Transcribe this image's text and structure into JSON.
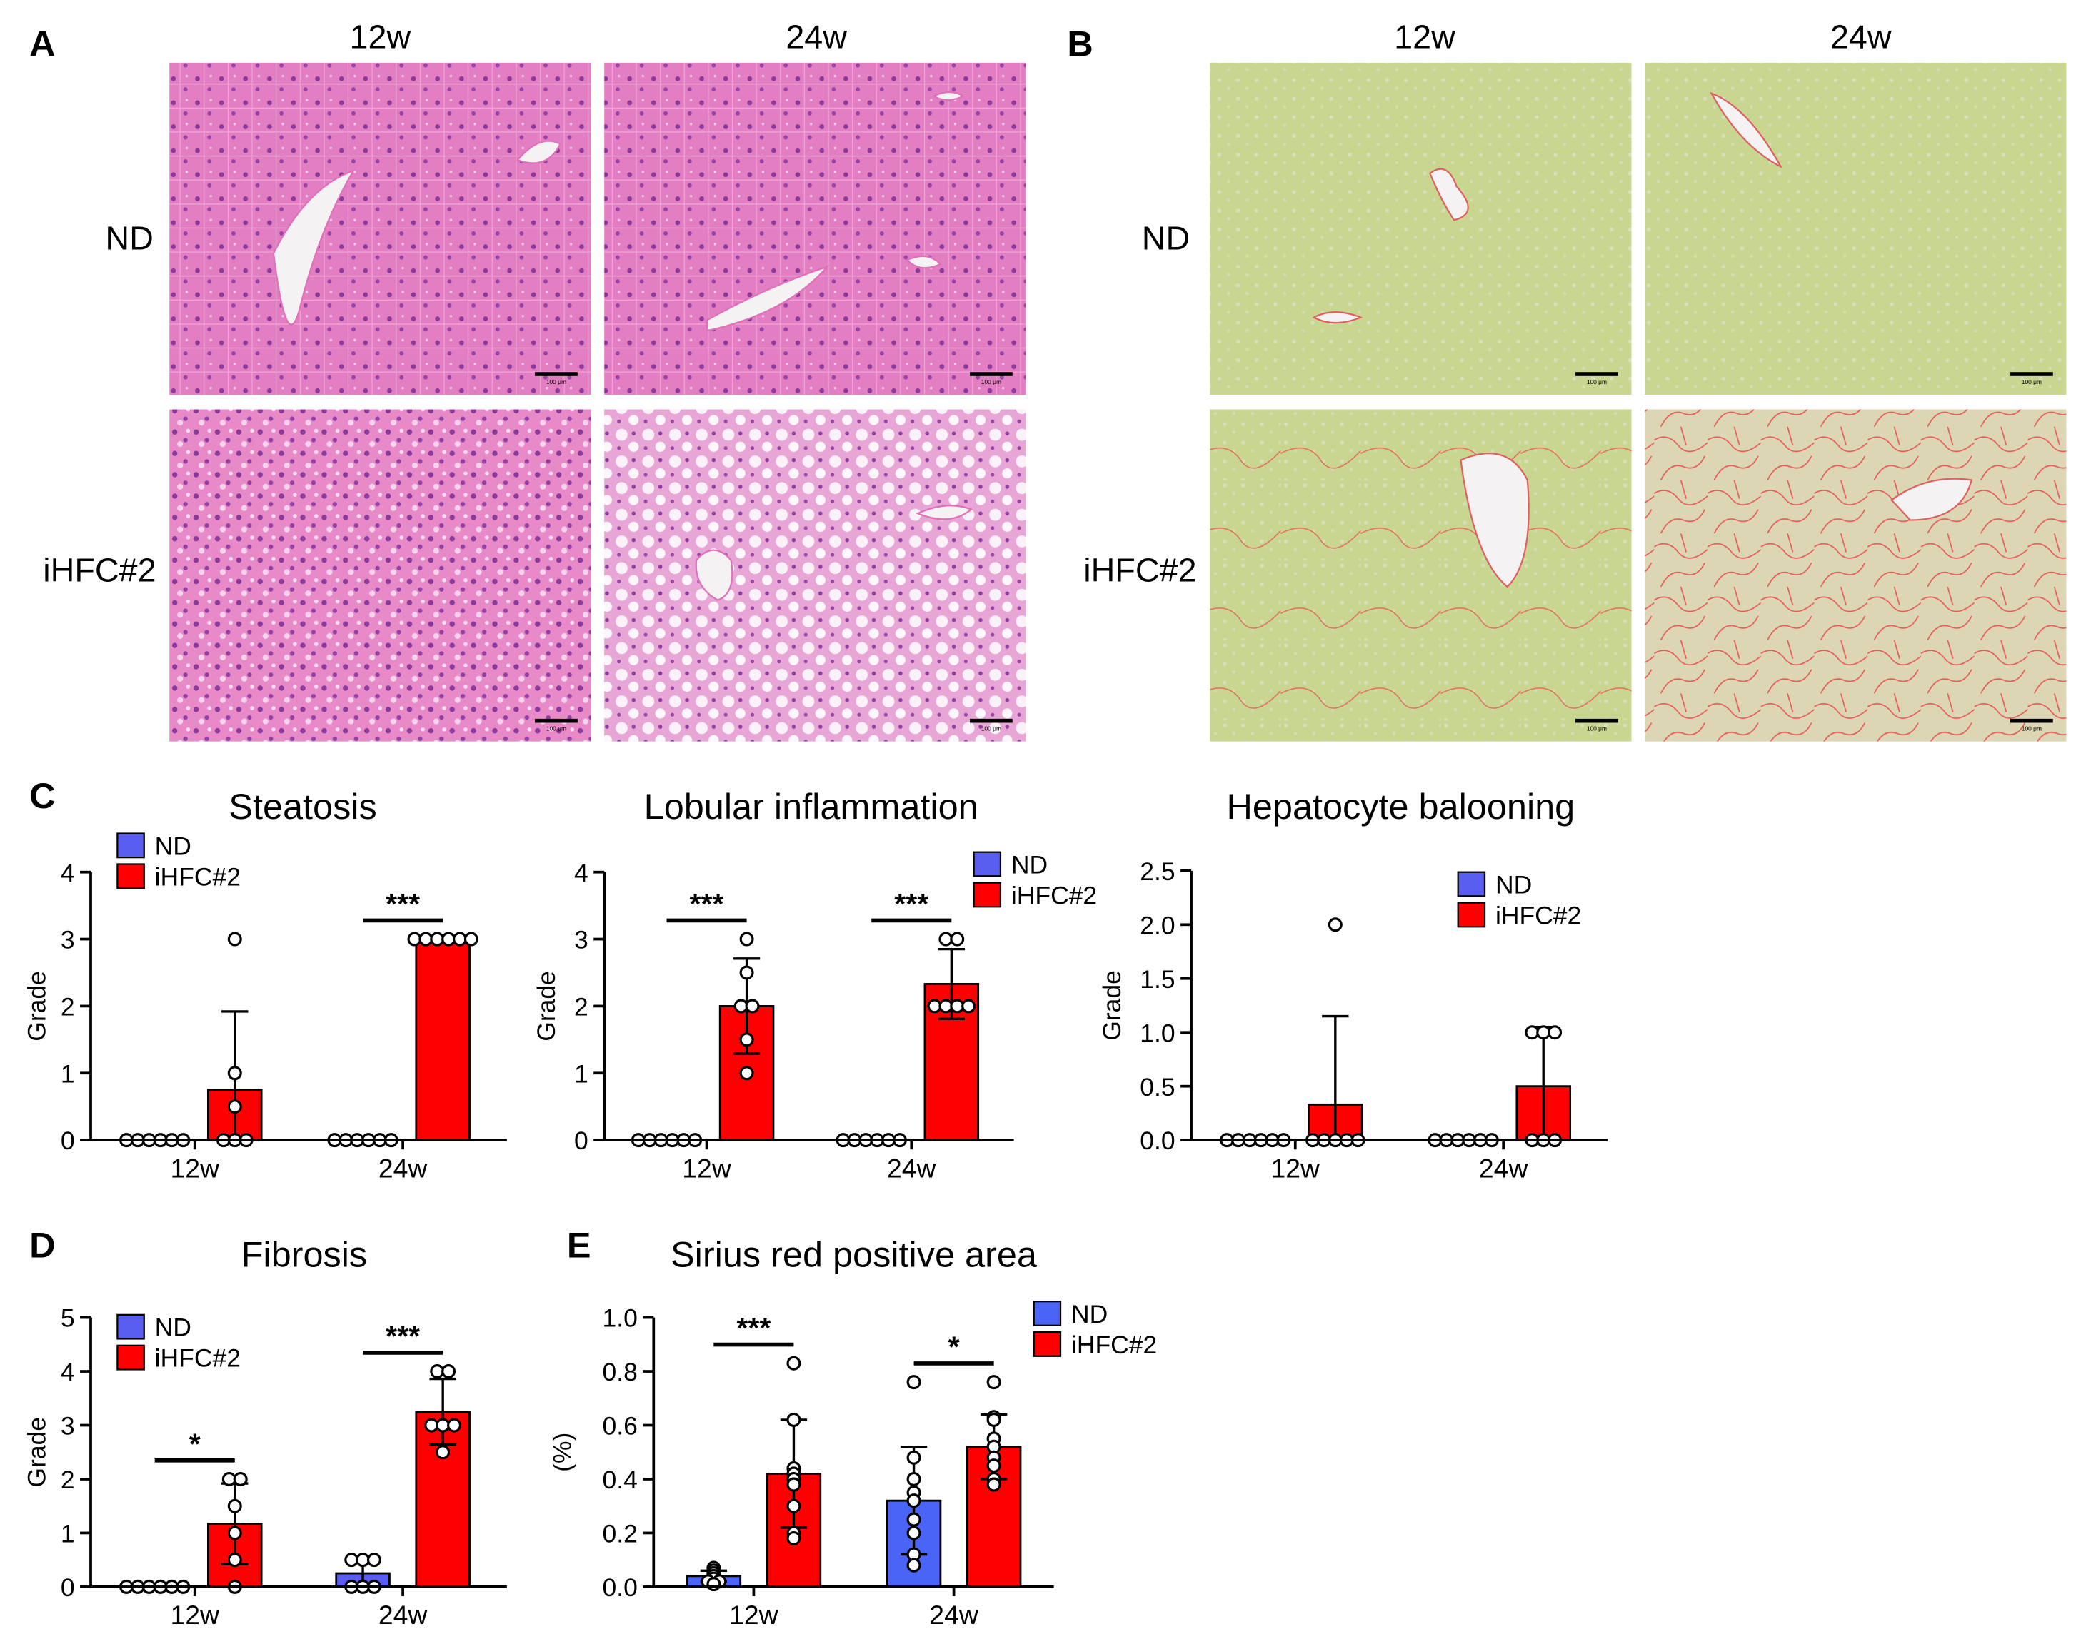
{
  "figure": {
    "panel_a": {
      "letter": "A",
      "columns": [
        "12w",
        "24w"
      ],
      "rows": [
        "ND",
        "iHFC#2"
      ],
      "scale_bar": "100 μm"
    },
    "panel_b": {
      "letter": "B",
      "columns": [
        "12w",
        "24w"
      ],
      "rows": [
        "ND",
        "iHFC#2"
      ],
      "scale_bar": "100 μm"
    }
  },
  "chart_data": [
    {
      "type": "bar",
      "panel": "C",
      "title": "Steatosis",
      "ylabel": "Grade",
      "categories": [
        "12w",
        "24w"
      ],
      "ylim": [
        0,
        4
      ],
      "yticks": [
        0,
        1,
        2,
        3,
        4
      ],
      "series": [
        {
          "name": "ND",
          "color": "#5a5ef0",
          "values": [
            0,
            0
          ],
          "errors": [
            0,
            0
          ],
          "points": [
            [
              0,
              0,
              0,
              0,
              0,
              0
            ],
            [
              0,
              0,
              0,
              0,
              0,
              0
            ]
          ]
        },
        {
          "name": "iHFC#2",
          "color": "#ff0000",
          "values": [
            0.75,
            3.0
          ],
          "errors": [
            1.17,
            0
          ],
          "points": [
            [
              3,
              1,
              0.5,
              0,
              0,
              0
            ],
            [
              3,
              3,
              3,
              3,
              3,
              3
            ]
          ]
        }
      ],
      "significance": [
        null,
        "***"
      ]
    },
    {
      "type": "bar",
      "title": "Lobular inflammation",
      "ylabel": "Grade",
      "categories": [
        "12w",
        "24w"
      ],
      "ylim": [
        0,
        4
      ],
      "yticks": [
        0,
        1,
        2,
        3,
        4
      ],
      "series": [
        {
          "name": "ND",
          "color": "#5a5ef0",
          "values": [
            0,
            0
          ],
          "errors": [
            0,
            0
          ],
          "points": [
            [
              0,
              0,
              0,
              0,
              0,
              0
            ],
            [
              0,
              0,
              0,
              0,
              0,
              0
            ]
          ]
        },
        {
          "name": "iHFC#2",
          "color": "#ff0000",
          "values": [
            2.0,
            2.33
          ],
          "errors": [
            0.71,
            0.52
          ],
          "points": [
            [
              3,
              2.5,
              2,
              2,
              1.5,
              1
            ],
            [
              3,
              3,
              2,
              2,
              2,
              2
            ]
          ]
        }
      ],
      "significance": [
        "***",
        "***"
      ]
    },
    {
      "type": "bar",
      "title": "Hepatocyte balooning",
      "ylabel": "Grade",
      "categories": [
        "12w",
        "24w"
      ],
      "ylim": [
        0,
        2.5
      ],
      "yticks": [
        {
          "value": 0,
          "label": "0.0"
        },
        0.5,
        {
          "value": 1,
          "label": "1.0"
        },
        1.5,
        {
          "value": 2,
          "label": "2.0"
        },
        2.5
      ],
      "series": [
        {
          "name": "ND",
          "color": "#5a5ef0",
          "values": [
            0,
            0
          ],
          "errors": [
            0,
            0
          ],
          "points": [
            [
              0,
              0,
              0,
              0,
              0,
              0
            ],
            [
              0,
              0,
              0,
              0,
              0,
              0
            ]
          ]
        },
        {
          "name": "iHFC#2",
          "color": "#ff0000",
          "values": [
            0.33,
            0.5
          ],
          "errors": [
            0.82,
            0.55
          ],
          "points": [
            [
              2,
              0,
              0,
              0,
              0,
              0
            ],
            [
              1,
              1,
              1,
              0,
              0,
              0
            ]
          ]
        }
      ],
      "significance": [
        null,
        null
      ]
    },
    {
      "type": "bar",
      "panel": "D",
      "title": "Fibrosis",
      "ylabel": "Grade",
      "categories": [
        "12w",
        "24w"
      ],
      "ylim": [
        0,
        5
      ],
      "yticks": [
        0,
        1,
        2,
        3,
        4,
        5
      ],
      "series": [
        {
          "name": "ND",
          "color": "#5a5ef0",
          "values": [
            0,
            0.25
          ],
          "errors": [
            0,
            0.27
          ],
          "points": [
            [
              0,
              0,
              0,
              0,
              0,
              0
            ],
            [
              0.5,
              0.5,
              0.5,
              0,
              0,
              0
            ]
          ]
        },
        {
          "name": "iHFC#2",
          "color": "#ff0000",
          "values": [
            1.17,
            3.25
          ],
          "errors": [
            0.75,
            0.61
          ],
          "points": [
            [
              2,
              2,
              1.5,
              1,
              0.5,
              0
            ],
            [
              4,
              4,
              3,
              3,
              3,
              2.5
            ]
          ]
        }
      ],
      "significance": [
        "*",
        "***"
      ]
    },
    {
      "type": "bar",
      "panel": "E",
      "title": "Sirius red positive area",
      "ylabel": "(%)",
      "categories": [
        "12w",
        "24w"
      ],
      "ylim": [
        0,
        1
      ],
      "yticks": [
        {
          "value": 0,
          "label": "0.0"
        },
        0.2,
        0.4,
        0.6,
        0.8,
        {
          "value": 1,
          "label": "1.0"
        }
      ],
      "series": [
        {
          "name": "ND",
          "color": "#4a64f5",
          "values": [
            0.04,
            0.32
          ],
          "errors": [
            0.02,
            0.2
          ],
          "points": [
            [
              0.07,
              0.06,
              0.05,
              0.04,
              0.03,
              0.02,
              0.02,
              0.01
            ],
            [
              0.76,
              0.48,
              0.4,
              0.35,
              0.32,
              0.25,
              0.2,
              0.12,
              0.08
            ]
          ]
        },
        {
          "name": "iHFC#2",
          "color": "#ff0000",
          "values": [
            0.42,
            0.52
          ],
          "errors": [
            0.2,
            0.12
          ],
          "points": [
            [
              0.83,
              0.62,
              0.44,
              0.42,
              0.4,
              0.38,
              0.3,
              0.2,
              0.18
            ],
            [
              0.76,
              0.63,
              0.62,
              0.55,
              0.52,
              0.48,
              0.45,
              0.4,
              0.38
            ]
          ]
        }
      ],
      "significance": [
        "***",
        "*"
      ]
    }
  ]
}
